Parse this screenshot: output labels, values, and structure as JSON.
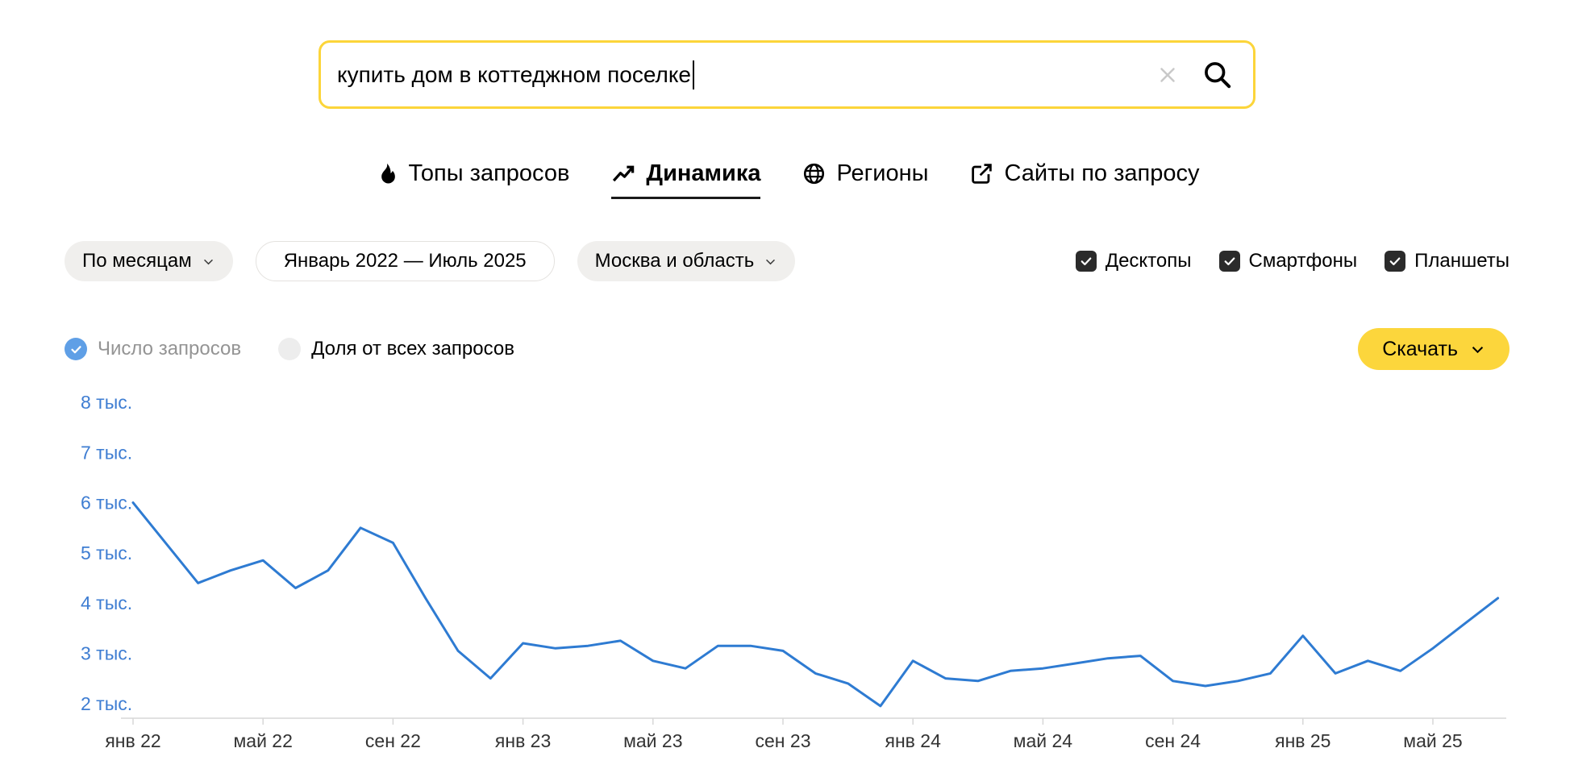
{
  "search": {
    "value": "купить дом в коттеджном поселке",
    "clear_icon": "x-icon",
    "submit_icon": "magnifier-icon"
  },
  "tabs": {
    "items": [
      {
        "label": "Топы запросов",
        "icon": "flame-icon",
        "active": false
      },
      {
        "label": "Динамика",
        "icon": "trending-up-icon",
        "active": true
      },
      {
        "label": "Регионы",
        "icon": "globe-icon",
        "active": false
      },
      {
        "label": "Сайты по запросу",
        "icon": "external-link-icon",
        "active": false
      }
    ]
  },
  "filters": {
    "period_grouping": "По месяцам",
    "date_range": "Январь 2022 — Июль 2025",
    "region": "Москва и область",
    "devices": [
      {
        "label": "Десктопы",
        "checked": true
      },
      {
        "label": "Смартфоны",
        "checked": true
      },
      {
        "label": "Планшеты",
        "checked": true
      }
    ]
  },
  "series_toggle": {
    "options": [
      {
        "label": "Число запросов",
        "selected": true
      },
      {
        "label": "Доля от всех запросов",
        "selected": false
      }
    ]
  },
  "download": {
    "label": "Скачать"
  },
  "colors": {
    "accent_yellow": "#fcd63c",
    "search_border_yellow": "#fcd53a",
    "line_blue": "#2e7bd2",
    "y_axis_label_blue": "#3e7dd2",
    "checkbox_dark": "#2b2b2b",
    "toggle_blue": "#5f9fe6"
  },
  "chart_data": {
    "type": "line",
    "series_name": "Число запросов",
    "x": [
      "янв 22",
      "фев 22",
      "мар 22",
      "апр 22",
      "май 22",
      "июн 22",
      "июл 22",
      "авг 22",
      "сен 22",
      "окт 22",
      "ноя 22",
      "дек 22",
      "янв 23",
      "фев 23",
      "мар 23",
      "апр 23",
      "май 23",
      "июн 23",
      "июл 23",
      "авг 23",
      "сен 23",
      "окт 23",
      "ноя 23",
      "дек 23",
      "янв 24",
      "фев 24",
      "мар 24",
      "апр 24",
      "май 24",
      "июн 24",
      "июл 24",
      "авг 24",
      "сен 24",
      "окт 24",
      "ноя 24",
      "дек 24",
      "янв 25",
      "фев 25",
      "мар 25",
      "апр 25",
      "май 25",
      "июн 25",
      "июл 25"
    ],
    "values": [
      6000,
      5200,
      4400,
      4650,
      4850,
      4300,
      4650,
      5500,
      5200,
      4100,
      3050,
      2500,
      3200,
      3100,
      3150,
      3250,
      2850,
      2700,
      3150,
      3150,
      3050,
      2600,
      2400,
      1950,
      2850,
      2500,
      2450,
      2650,
      2700,
      2800,
      2900,
      2950,
      2450,
      2350,
      2450,
      2600,
      3350,
      2600,
      2850,
      2650,
      3100,
      3600,
      4100
    ],
    "x_tick_labels": [
      "янв 22",
      "май 22",
      "сен 22",
      "янв 23",
      "май 23",
      "сен 23",
      "янв 24",
      "май 24",
      "сен 24",
      "янв 25",
      "май 25"
    ],
    "x_tick_indices": [
      0,
      4,
      8,
      12,
      16,
      20,
      24,
      28,
      32,
      36,
      40
    ],
    "y_ticks": [
      8000,
      7000,
      6000,
      5000,
      4000,
      3000,
      2000
    ],
    "y_tick_labels": [
      "8 тыс.",
      "7 тыс.",
      "6 тыс.",
      "5 тыс.",
      "4 тыс.",
      "3 тыс.",
      "2 тыс."
    ],
    "ylim": [
      1700,
      8200
    ],
    "line_color": "#2e7bd2",
    "grid": false,
    "legend_position": "none"
  }
}
